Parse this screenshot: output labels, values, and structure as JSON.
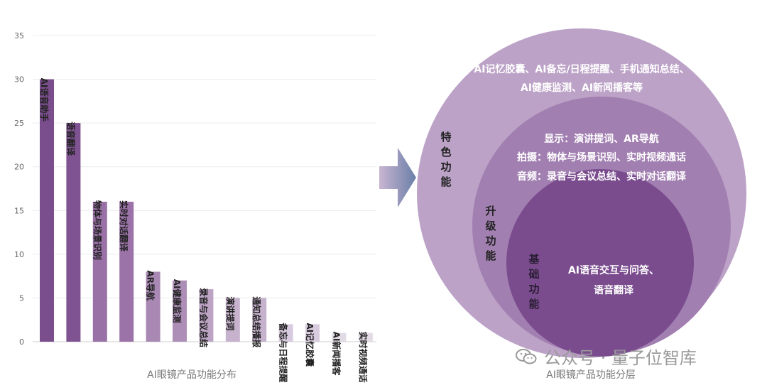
{
  "chart_data": [
    {
      "type": "bar",
      "title": "AI眼镜产品功能分布",
      "categories": [
        "AI语音助手",
        "语音翻译",
        "物体与场景识别",
        "实时对话翻译",
        "AR导航",
        "AI健康监测",
        "录音与会议总结",
        "演讲提词",
        "通知总结播报",
        "备忘与日程提醒",
        "AI记忆胶囊",
        "AI新闻播客",
        "实时视频通话"
      ],
      "values": [
        30,
        25,
        16,
        16,
        8,
        7,
        6,
        5,
        5,
        2,
        2,
        1,
        1
      ],
      "ylim": [
        0,
        35
      ],
      "yticks": [
        0,
        5,
        10,
        15,
        20,
        25,
        30,
        35
      ],
      "grid": true,
      "colors": [
        "#7a4d8c",
        "#7f5391",
        "#9a71a6",
        "#9c73a8",
        "#a988b4",
        "#ad8eb7",
        "#bda4c5",
        "#c6b2cd",
        "#c6b2cd",
        "#d9cbdf",
        "#d9cbdf",
        "#e2dbe6",
        "#e2dbe6"
      ]
    },
    {
      "type": "diagram",
      "title": "AI眼镜产品功能分层",
      "layers": [
        {
          "label": "特色功能",
          "lines": [
            "AI记忆胶囊、AI备忘/日程提醒、手机通知总结、",
            "AI健康监测、AI新闻播客等"
          ],
          "color": "#bca2c7"
        },
        {
          "label": "升级功能",
          "lines": [
            "显示：演讲提词、AR导航",
            "拍摄：物体与场景识别、实时视频通话",
            "音频：录音与会议总结、实时对话翻译"
          ],
          "color": "#a27fb1"
        },
        {
          "label": "基础功能",
          "lines": [
            "AI语音交互与问答、",
            "语音翻译"
          ],
          "color": "#7a4c8e"
        }
      ]
    }
  ],
  "watermark": {
    "text": "公众号 · 量子位智库",
    "icon": "wechat-icon"
  }
}
